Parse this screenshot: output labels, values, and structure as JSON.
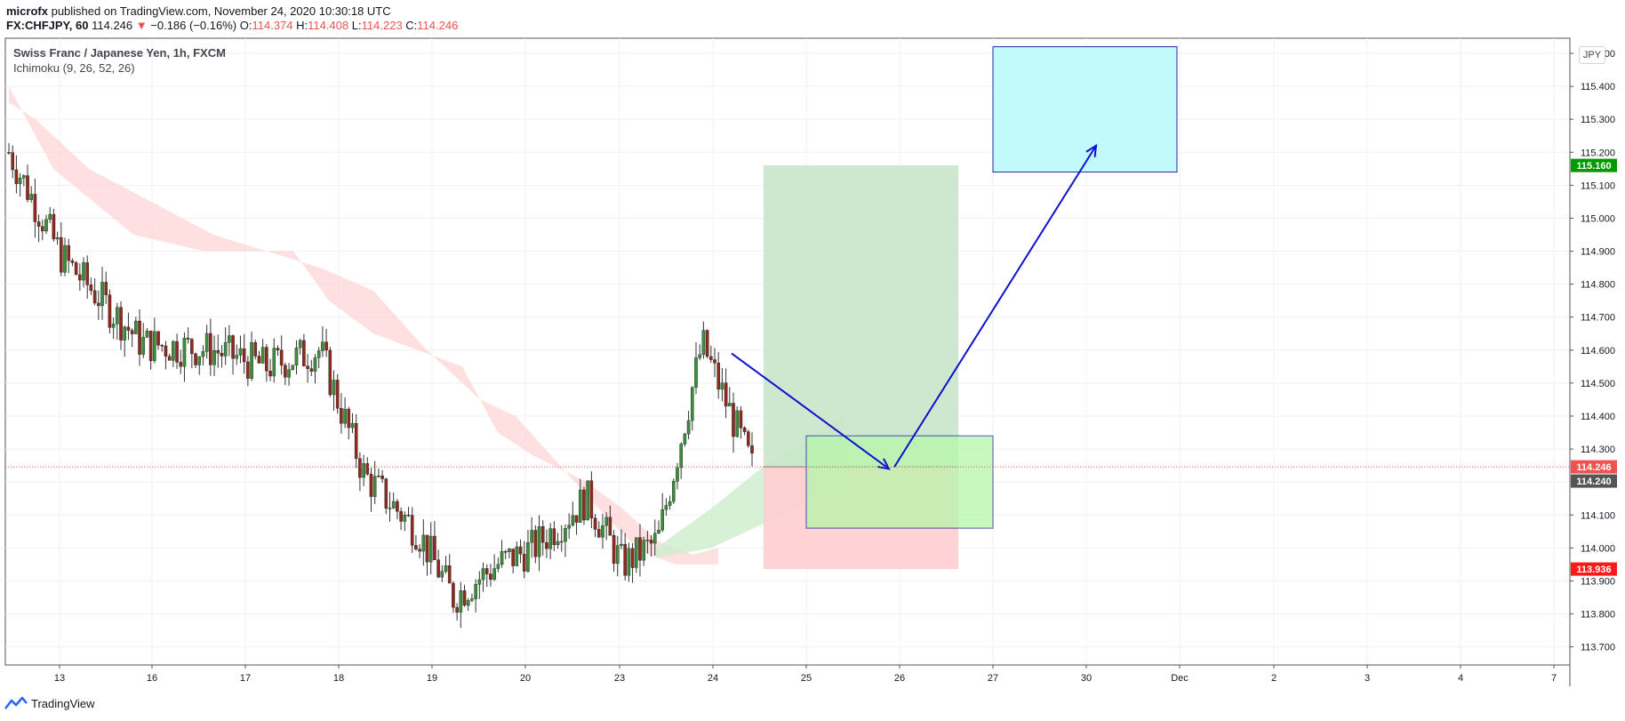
{
  "header": {
    "author": "microfx",
    "published_text": "published on TradingView.com, November 24, 2020 10:30:18 UTC",
    "symbol": "FX:CHFJPY, 60",
    "last_price": "114.246",
    "change": "−0.186 (−0.16%)",
    "open_label": "O:",
    "open": "114.374",
    "high_label": "H:",
    "high": "114.408",
    "low_label": "L:",
    "low": "114.223",
    "close_label": "C:",
    "close": "114.246"
  },
  "pane": {
    "title": "Swiss Franc / Japanese Yen, 1h, FXCM",
    "indicator": "Ichimoku (9, 26, 52, 26)",
    "currency_button": "JPY"
  },
  "footer": {
    "brand": "TradingView"
  },
  "colors": {
    "up": "#26a69a",
    "up_body": "#3a8f3a",
    "down": "#ef5350",
    "down_body": "#8f2a1f",
    "cloud_red": "#ffd6d6",
    "cloud_green": "#cdeecd",
    "target_zone": "#c8e6c9",
    "stop_zone": "#ffcdd2",
    "box_cyan": "#bff9fb",
    "box_green": "#b5f7a9",
    "arrow": "#1010d0"
  },
  "chart_data": {
    "type": "candlestick",
    "title": "Swiss Franc / Japanese Yen, 1h, FXCM",
    "xlabel": "",
    "ylabel": "",
    "ylim": [
      113.65,
      115.52
    ],
    "x_ticks": [
      "13",
      "16",
      "17",
      "18",
      "19",
      "20",
      "23",
      "24",
      "25",
      "26",
      "27",
      "30",
      "Dec",
      "2",
      "3",
      "4",
      "7"
    ],
    "y_ticks": [
      "113.700",
      "113.800",
      "113.900",
      "114.000",
      "114.100",
      "114.300",
      "114.400",
      "114.500",
      "114.600",
      "114.700",
      "114.800",
      "114.900",
      "115.000",
      "115.100",
      "115.200",
      "115.300",
      "115.400",
      "115.500"
    ],
    "grid": true,
    "price_labels": [
      {
        "value": 115.16,
        "text": "115.160",
        "color": "#009900"
      },
      {
        "value": 114.246,
        "text": "114.246",
        "color": "#ef5350"
      },
      {
        "value": 114.24,
        "text": "114.240",
        "color": "#555555"
      },
      {
        "value": 113.936,
        "text": "113.936",
        "color": "#ff1a1a"
      }
    ],
    "close_path": [
      [
        "13",
        115.2
      ],
      [
        "13",
        114.88
      ],
      [
        "16",
        114.62
      ],
      [
        "16",
        114.6
      ],
      [
        "17",
        114.55
      ],
      [
        "17",
        114.6
      ],
      [
        "18",
        114.22
      ],
      [
        "18",
        114.05
      ],
      [
        "19",
        113.85
      ],
      [
        "19",
        113.95
      ],
      [
        "20",
        114.0
      ],
      [
        "20",
        114.15
      ],
      [
        "23",
        113.95
      ],
      [
        "23",
        114.02
      ],
      [
        "24",
        114.62
      ],
      [
        "24",
        114.246
      ]
    ],
    "long_position": {
      "start": "24",
      "entry": 114.246,
      "target": 115.16,
      "stop": 113.936
    },
    "boxes": [
      {
        "name": "target-box-cyan",
        "x_from": "27",
        "x_to": "30+",
        "y_from": 115.14,
        "y_to": 115.52
      },
      {
        "name": "support-box-green",
        "x_from": "25",
        "x_to": "27",
        "y_from": 114.06,
        "y_to": 114.34
      }
    ],
    "arrows": [
      {
        "from": [
          "24",
          114.59
        ],
        "to": [
          "26",
          114.24
        ]
      },
      {
        "from": [
          "26",
          114.24
        ],
        "to": [
          "30",
          115.22
        ]
      }
    ]
  }
}
